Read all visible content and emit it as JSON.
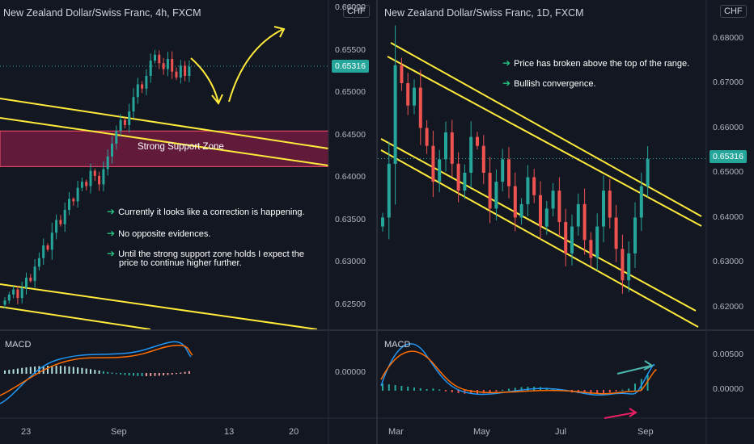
{
  "left_chart": {
    "title": "New Zealand Dollar/Swiss Franc, 4h, FXCM",
    "currency": "CHF",
    "price_ticks": [
      "0.66000",
      "0.65500",
      "0.65000",
      "0.64500",
      "0.64000",
      "0.63500",
      "0.63000",
      "0.62500"
    ],
    "current_price": "0.65316",
    "date_ticks": [
      "23",
      "Sep",
      "13",
      "20"
    ],
    "macd_label": "MACD",
    "macd_tick": "0.00000",
    "zone_label": "Strong Support Zone",
    "notes": [
      "Currently it looks like a correction is happening.",
      "No opposite evidences.",
      "Until the strong support zone holds I expect the",
      "price to continue higher further."
    ],
    "colors": {
      "zone_fill": "#8e1c4a",
      "zone_border": "#ff4d6d",
      "trendline": "#ffeb3b",
      "up": "#26a69a",
      "down": "#ef5350"
    }
  },
  "right_chart": {
    "title": "New Zealand Dollar/Swiss Franc, 1D, FXCM",
    "currency": "CHF",
    "price_ticks": [
      "0.68000",
      "0.67000",
      "0.66000",
      "0.65000",
      "0.64000",
      "0.63000",
      "0.62000"
    ],
    "current_price": "0.65316",
    "date_ticks": [
      "Mar",
      "May",
      "Jul",
      "Sep"
    ],
    "macd_label": "MACD",
    "macd_ticks": [
      "0.00500",
      "0.00000"
    ],
    "notes": [
      "Price has broken above the top of the range.",
      "Bullish convergence."
    ]
  },
  "chart_data": [
    {
      "type": "candlestick",
      "title": "New Zealand Dollar/Swiss Franc, 4h, FXCM",
      "ylim": [
        0.622,
        0.6605
      ],
      "x_ticks": [
        "23",
        "Sep",
        "13",
        "20"
      ],
      "close_series": [
        0.6255,
        0.6262,
        0.6268,
        0.6258,
        0.627,
        0.6282,
        0.6278,
        0.6295,
        0.6305,
        0.632,
        0.6315,
        0.6335,
        0.635,
        0.6345,
        0.6362,
        0.6375,
        0.6372,
        0.6388,
        0.6395,
        0.639,
        0.6408,
        0.6402,
        0.6392,
        0.641,
        0.6425,
        0.644,
        0.6455,
        0.6468,
        0.6462,
        0.6478,
        0.6495,
        0.651,
        0.6505,
        0.652,
        0.6538,
        0.6545,
        0.6535,
        0.6528,
        0.654,
        0.6525,
        0.6518,
        0.6532,
        0.652,
        0.6531
      ],
      "current_price": 0.65316,
      "support_zone": [
        0.6413,
        0.6455
      ],
      "macd": {
        "label": "MACD",
        "zero": 0.0
      }
    },
    {
      "type": "candlestick",
      "title": "New Zealand Dollar/Swiss Franc, 1D, FXCM",
      "ylim": [
        0.6155,
        0.6825
      ],
      "x_ticks": [
        "Mar",
        "May",
        "Jul",
        "Sep"
      ],
      "close_series": [
        0.64,
        0.652,
        0.674,
        0.67,
        0.665,
        0.669,
        0.66,
        0.656,
        0.648,
        0.653,
        0.659,
        0.652,
        0.646,
        0.65,
        0.658,
        0.656,
        0.65,
        0.642,
        0.648,
        0.653,
        0.647,
        0.64,
        0.643,
        0.649,
        0.645,
        0.638,
        0.642,
        0.646,
        0.639,
        0.632,
        0.638,
        0.643,
        0.635,
        0.631,
        0.638,
        0.646,
        0.64,
        0.633,
        0.626,
        0.632,
        0.64,
        0.647,
        0.6531
      ],
      "current_price": 0.65316,
      "macd": {
        "label": "MACD",
        "ticks": [
          0.005,
          0.0
        ]
      }
    }
  ]
}
